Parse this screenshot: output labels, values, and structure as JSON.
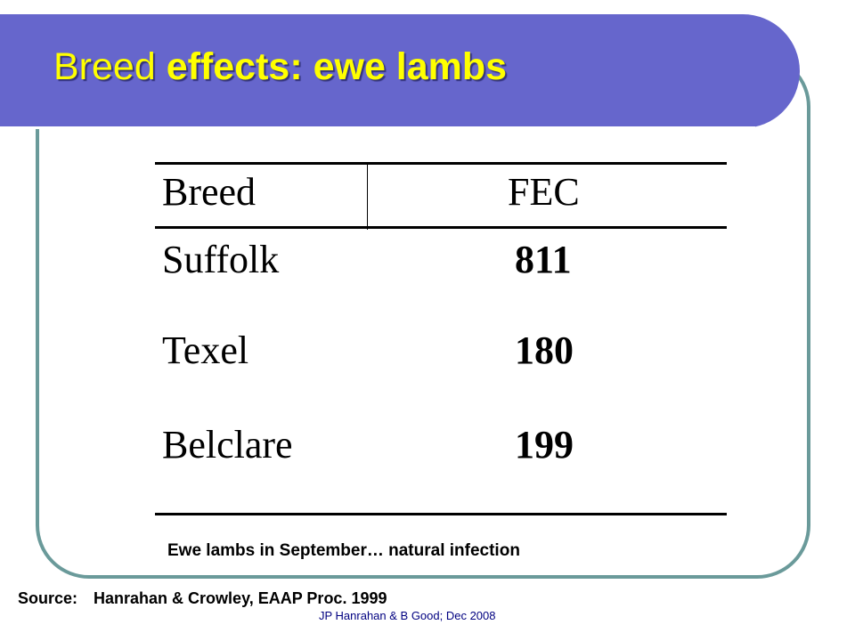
{
  "slide": {
    "title_part1": "Breed ",
    "title_part2": "effects: ewe lambs",
    "colors": {
      "title_bar": "#6666cc",
      "title_text": "#ffff00",
      "frame_border": "#6a9a9a"
    }
  },
  "table": {
    "headers": [
      "Breed",
      "FEC"
    ],
    "rows": [
      {
        "breed": "Suffolk",
        "fec": "811"
      },
      {
        "breed": "Texel",
        "fec": "180"
      },
      {
        "breed": "Belclare",
        "fec": "199"
      }
    ]
  },
  "caption": "Ewe lambs in September… natural infection",
  "source": {
    "label": "Source:",
    "text": "Hanrahan & Crowley, EAAP Proc. 1999"
  },
  "footer": "JP Hanrahan & B Good; Dec 2008"
}
